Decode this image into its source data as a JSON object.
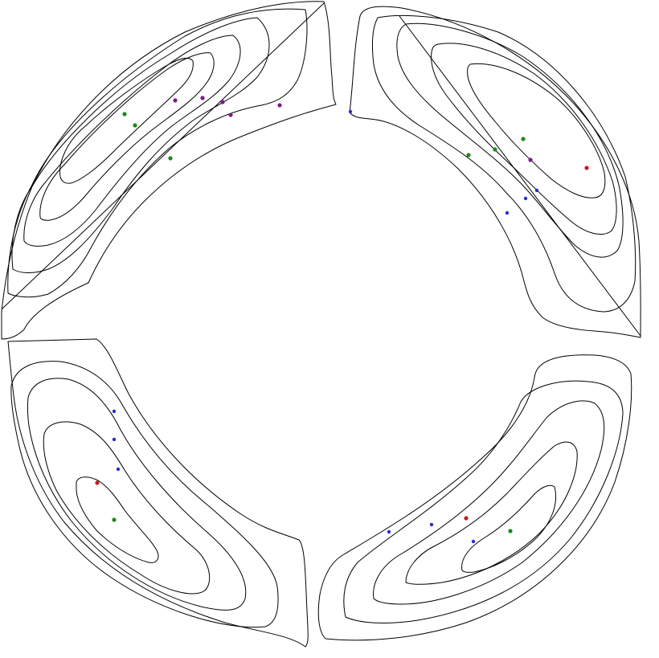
{
  "figure": {
    "description_visible_text": "",
    "colors": {
      "line": "#000000",
      "green": "#1a8a1a",
      "blue": "#2a2ad0",
      "purple": "#7a1a8a",
      "red": "#c81a1a"
    }
  }
}
